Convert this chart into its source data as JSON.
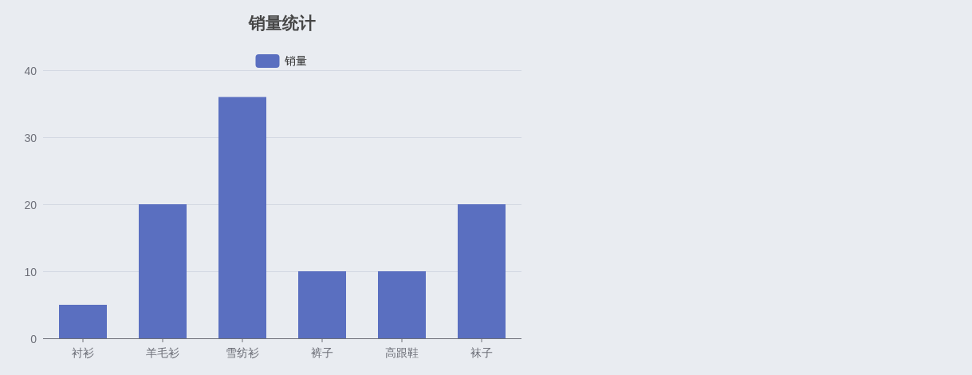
{
  "chart_data": {
    "type": "bar",
    "title": "销量统计",
    "categories": [
      "衬衫",
      "羊毛衫",
      "雪纺衫",
      "裤子",
      "高跟鞋",
      "袜子"
    ],
    "series": [
      {
        "name": "销量",
        "color": "#5a6fc0",
        "values": [
          5,
          20,
          36,
          10,
          10,
          20
        ]
      }
    ],
    "ylim": [
      0,
      40
    ],
    "yticks": [
      0,
      10,
      20,
      30,
      40
    ],
    "grid": "y",
    "legend": "top"
  }
}
